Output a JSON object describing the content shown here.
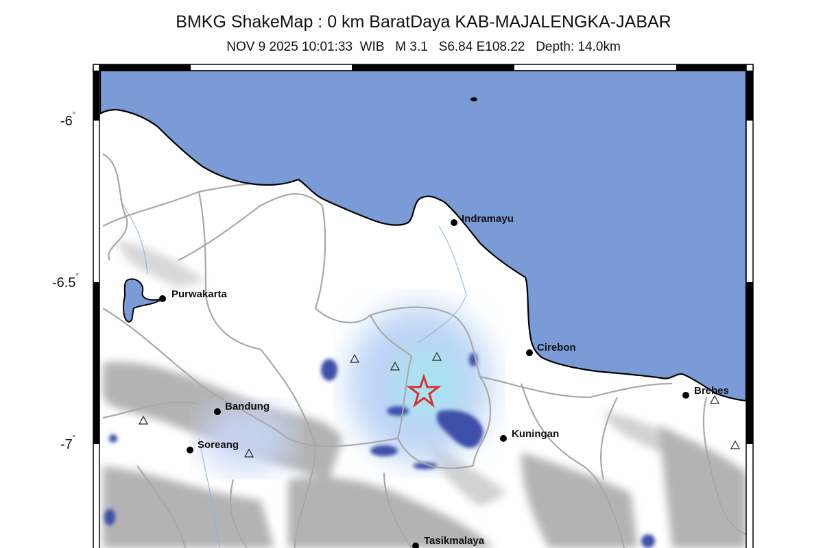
{
  "header": {
    "title": "BMKG ShakeMap : 0 km BaratDaya KAB-MAJALENGKA-JABAR",
    "subtitle": "NOV 9 2025 10:01:33  WIB   M 3.1   S6.84 E108.22   Depth: 14.0km"
  },
  "latitude_labels": [
    "-6",
    "-6.5",
    "-7"
  ],
  "degree_symbol": "°",
  "cities": [
    {
      "name": "Indramayu"
    },
    {
      "name": "Purwakarta"
    },
    {
      "name": "Cirebon"
    },
    {
      "name": "Brebes"
    },
    {
      "name": "Bandung"
    },
    {
      "name": "Kuningan"
    },
    {
      "name": "Soreang"
    },
    {
      "name": "Tasikmalaya"
    }
  ],
  "epicenter": {
    "lat": -6.84,
    "lon": 108.22,
    "icon": "star-icon",
    "color": "#d83030"
  },
  "stations_icon": "triangle-icon",
  "colors": {
    "sea": "#7b9bd6",
    "land": "#ffffff",
    "intensity": "#b9d9f4"
  }
}
